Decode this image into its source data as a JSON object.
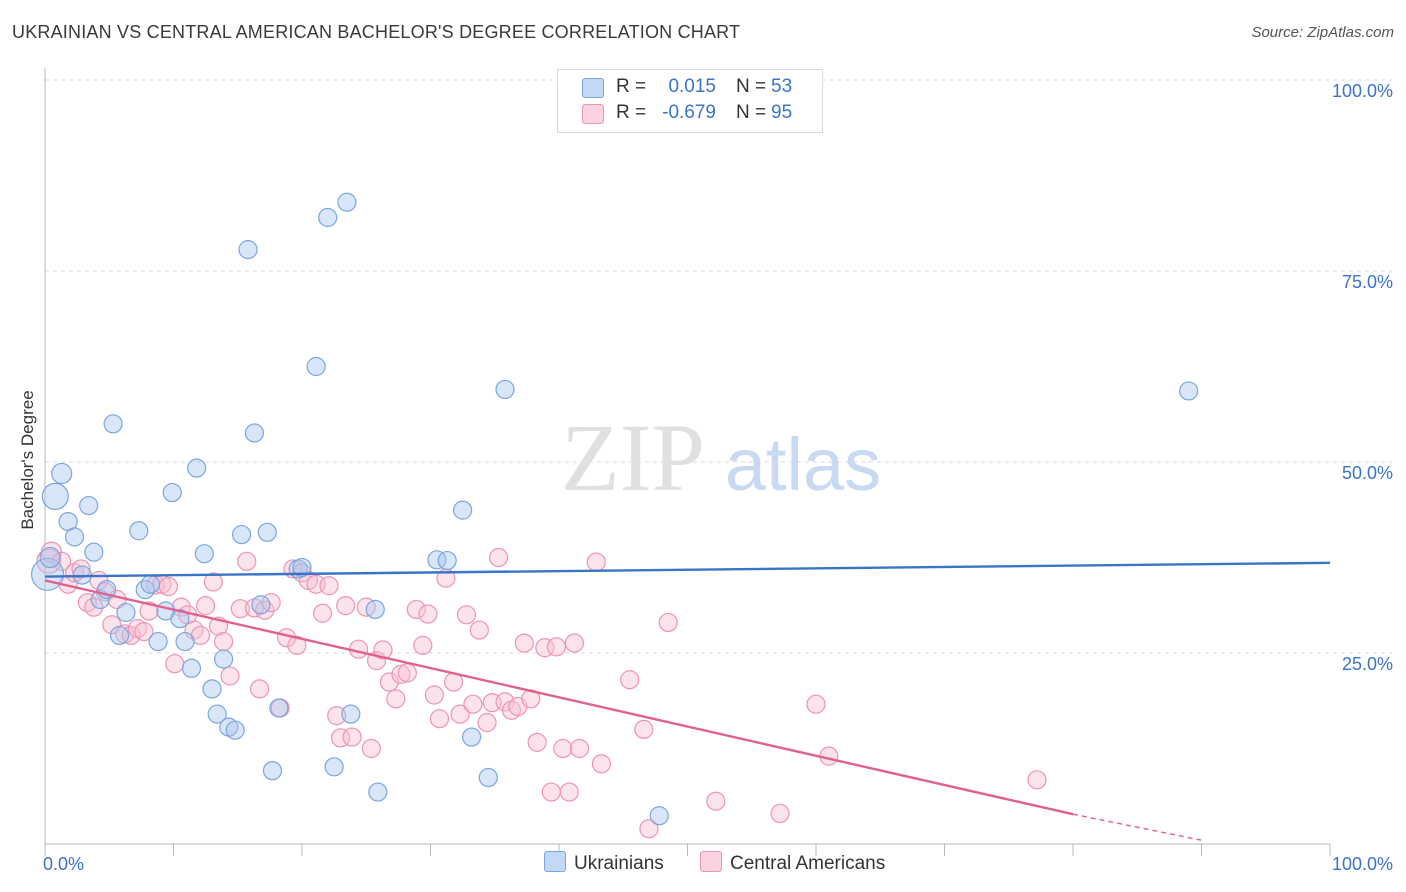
{
  "title": "UKRAINIAN VS CENTRAL AMERICAN BACHELOR'S DEGREE CORRELATION CHART",
  "source": "Source: ZipAtlas.com",
  "watermark": {
    "zip": "ZIP",
    "atlas": "atlas"
  },
  "legend": {
    "rows": [
      {
        "r_label": "R =",
        "r_value": "0.015",
        "n_label": "N =",
        "n_value": "53",
        "color": "#aac8f0",
        "border": "#7aa5e0"
      },
      {
        "r_label": "R =",
        "r_value": "-0.679",
        "n_label": "N =",
        "n_value": "95",
        "color": "#f9c3d4",
        "border": "#ef93b2"
      }
    ]
  },
  "bottom_legend": {
    "series1": "Ukrainians",
    "series2": "Central Americans"
  },
  "colors": {
    "blue": "#3a74c9",
    "pink": "#e0608e",
    "blue_fill": "#aac8f0",
    "pink_fill": "#f7c0d2",
    "grid": "#d8d8d8",
    "tick_text": "#3a74c9"
  },
  "chart_data": {
    "type": "scatter",
    "title": "UKRAINIAN VS CENTRAL AMERICAN BACHELOR'S DEGREE CORRELATION CHART",
    "ylabel": "Bachelor's Degree",
    "xlabel": "",
    "xlim": [
      0,
      100
    ],
    "ylim": [
      0,
      100
    ],
    "x_tick_labels": [
      "0.0%",
      "100.0%"
    ],
    "y_tick_labels": [
      "25.0%",
      "50.0%",
      "75.0%",
      "100.0%"
    ],
    "y_ticks": [
      25,
      50,
      75,
      100
    ],
    "grid": "horizontal dashed",
    "series": [
      {
        "name": "Ukrainians",
        "trend": {
          "x": [
            0,
            100
          ],
          "y": [
            35.0,
            36.8
          ]
        },
        "points": [
          [
            0.2,
            35.3,
            16
          ],
          [
            0.4,
            37.5,
            10
          ],
          [
            0.8,
            45.5,
            13
          ],
          [
            1.3,
            48.5,
            10
          ],
          [
            1.8,
            42.2,
            9
          ],
          [
            2.3,
            40.2,
            9
          ],
          [
            2.9,
            35.2,
            9
          ],
          [
            3.4,
            44.3,
            9
          ],
          [
            3.8,
            38.2,
            9
          ],
          [
            4.3,
            32.0,
            9
          ],
          [
            4.8,
            33.3,
            9
          ],
          [
            5.3,
            55.0,
            9
          ],
          [
            5.8,
            27.3,
            9
          ],
          [
            6.3,
            30.3,
            9
          ],
          [
            7.3,
            41.0,
            9
          ],
          [
            7.8,
            33.3,
            9
          ],
          [
            8.2,
            34.0,
            9
          ],
          [
            8.8,
            26.5,
            9
          ],
          [
            9.4,
            30.5,
            9
          ],
          [
            9.9,
            46.0,
            9
          ],
          [
            10.5,
            29.5,
            9
          ],
          [
            10.9,
            26.5,
            9
          ],
          [
            11.4,
            23.0,
            9
          ],
          [
            11.8,
            49.2,
            9
          ],
          [
            12.4,
            38.0,
            9
          ],
          [
            13.0,
            20.3,
            9
          ],
          [
            13.4,
            17.0,
            9
          ],
          [
            13.9,
            24.2,
            9
          ],
          [
            14.3,
            15.3,
            9
          ],
          [
            14.8,
            14.9,
            9
          ],
          [
            15.3,
            40.5,
            9
          ],
          [
            15.8,
            77.8,
            9
          ],
          [
            16.3,
            53.8,
            9
          ],
          [
            16.8,
            31.3,
            9
          ],
          [
            17.3,
            40.8,
            9
          ],
          [
            17.7,
            9.6,
            9
          ],
          [
            18.2,
            17.8,
            9
          ],
          [
            19.7,
            36.0,
            9
          ],
          [
            20.0,
            36.2,
            9
          ],
          [
            21.1,
            62.5,
            9
          ],
          [
            22.0,
            82.0,
            9
          ],
          [
            22.5,
            10.1,
            9
          ],
          [
            23.5,
            84.0,
            9
          ],
          [
            23.8,
            17.0,
            9
          ],
          [
            25.7,
            30.7,
            9
          ],
          [
            25.9,
            6.8,
            9
          ],
          [
            30.5,
            37.2,
            9
          ],
          [
            31.3,
            37.1,
            9
          ],
          [
            32.5,
            43.7,
            9
          ],
          [
            33.2,
            14.0,
            9
          ],
          [
            34.5,
            8.7,
            9
          ],
          [
            35.8,
            59.5,
            9
          ],
          [
            47.8,
            3.7,
            9
          ],
          [
            89.0,
            59.3,
            9
          ]
        ]
      },
      {
        "name": "Central Americans",
        "trend": {
          "x": [
            0,
            80
          ],
          "y": [
            34.5,
            3.9
          ]
        },
        "trend_dashed": {
          "x": [
            80,
            90
          ],
          "y": [
            3.9,
            0.5
          ]
        },
        "points": [
          [
            0.3,
            37.0,
            12
          ],
          [
            0.5,
            38.2,
            10
          ],
          [
            1.3,
            37.0,
            9
          ],
          [
            1.8,
            34.0,
            9
          ],
          [
            2.3,
            35.5,
            9
          ],
          [
            2.8,
            36.0,
            9
          ],
          [
            3.3,
            31.6,
            9
          ],
          [
            3.8,
            31.0,
            9
          ],
          [
            4.2,
            34.5,
            9
          ],
          [
            4.7,
            33.0,
            9
          ],
          [
            5.2,
            28.7,
            9
          ],
          [
            5.6,
            32.0,
            9
          ],
          [
            6.2,
            27.5,
            9
          ],
          [
            6.7,
            27.3,
            9
          ],
          [
            7.2,
            28.2,
            9
          ],
          [
            7.7,
            27.8,
            9
          ],
          [
            8.1,
            30.5,
            9
          ],
          [
            8.6,
            33.9,
            9
          ],
          [
            9.1,
            34.0,
            9
          ],
          [
            9.6,
            33.7,
            9
          ],
          [
            10.1,
            23.6,
            9
          ],
          [
            10.6,
            31.0,
            9
          ],
          [
            11.1,
            30.0,
            9
          ],
          [
            11.6,
            28.0,
            9
          ],
          [
            12.1,
            27.3,
            9
          ],
          [
            12.5,
            31.2,
            9
          ],
          [
            13.1,
            34.3,
            9
          ],
          [
            13.5,
            28.5,
            9
          ],
          [
            13.9,
            26.5,
            9
          ],
          [
            14.4,
            22.0,
            9
          ],
          [
            15.2,
            30.8,
            9
          ],
          [
            15.7,
            37.0,
            9
          ],
          [
            16.3,
            30.9,
            9
          ],
          [
            16.7,
            20.3,
            9
          ],
          [
            17.1,
            30.6,
            9
          ],
          [
            17.6,
            31.6,
            9
          ],
          [
            18.3,
            17.8,
            9
          ],
          [
            18.8,
            27.0,
            9
          ],
          [
            19.3,
            36.0,
            9
          ],
          [
            19.6,
            26.0,
            9
          ],
          [
            20.0,
            35.5,
            9
          ],
          [
            20.5,
            34.5,
            9
          ],
          [
            21.1,
            34.0,
            9
          ],
          [
            21.6,
            30.2,
            9
          ],
          [
            22.1,
            33.8,
            9
          ],
          [
            22.7,
            16.8,
            9
          ],
          [
            23.0,
            13.9,
            9
          ],
          [
            23.4,
            31.2,
            9
          ],
          [
            23.9,
            14.0,
            9
          ],
          [
            24.4,
            25.5,
            9
          ],
          [
            25.0,
            31.0,
            9
          ],
          [
            25.4,
            12.5,
            9
          ],
          [
            25.8,
            24.0,
            9
          ],
          [
            26.3,
            25.4,
            9
          ],
          [
            26.8,
            21.2,
            9
          ],
          [
            27.3,
            19.0,
            9
          ],
          [
            27.7,
            22.2,
            9
          ],
          [
            28.2,
            22.4,
            9
          ],
          [
            28.9,
            30.7,
            9
          ],
          [
            29.4,
            26.0,
            9
          ],
          [
            29.8,
            30.1,
            9
          ],
          [
            30.3,
            19.5,
            9
          ],
          [
            30.7,
            16.4,
            9
          ],
          [
            31.2,
            34.8,
            9
          ],
          [
            31.8,
            21.2,
            9
          ],
          [
            32.3,
            17.0,
            9
          ],
          [
            32.8,
            30.0,
            9
          ],
          [
            33.3,
            18.3,
            9
          ],
          [
            33.8,
            28.0,
            9
          ],
          [
            34.4,
            15.9,
            9
          ],
          [
            34.8,
            18.5,
            9
          ],
          [
            35.3,
            37.5,
            9
          ],
          [
            35.8,
            18.6,
            9
          ],
          [
            36.3,
            17.5,
            9
          ],
          [
            36.8,
            18.0,
            9
          ],
          [
            37.3,
            26.3,
            9
          ],
          [
            37.8,
            19.0,
            9
          ],
          [
            38.3,
            13.3,
            9
          ],
          [
            38.9,
            25.7,
            9
          ],
          [
            39.4,
            6.8,
            9
          ],
          [
            39.8,
            25.8,
            9
          ],
          [
            40.3,
            12.5,
            9
          ],
          [
            40.8,
            6.8,
            9
          ],
          [
            41.2,
            26.3,
            9
          ],
          [
            41.6,
            12.5,
            9
          ],
          [
            42.9,
            36.9,
            9
          ],
          [
            43.3,
            10.5,
            9
          ],
          [
            45.5,
            21.5,
            9
          ],
          [
            46.6,
            15.0,
            9
          ],
          [
            47.0,
            2.0,
            9
          ],
          [
            48.5,
            29.0,
            9
          ],
          [
            52.2,
            5.6,
            9
          ],
          [
            57.2,
            4.0,
            9
          ],
          [
            60.0,
            18.3,
            9
          ],
          [
            61.0,
            11.5,
            9
          ],
          [
            77.2,
            8.4,
            9
          ]
        ]
      }
    ]
  }
}
